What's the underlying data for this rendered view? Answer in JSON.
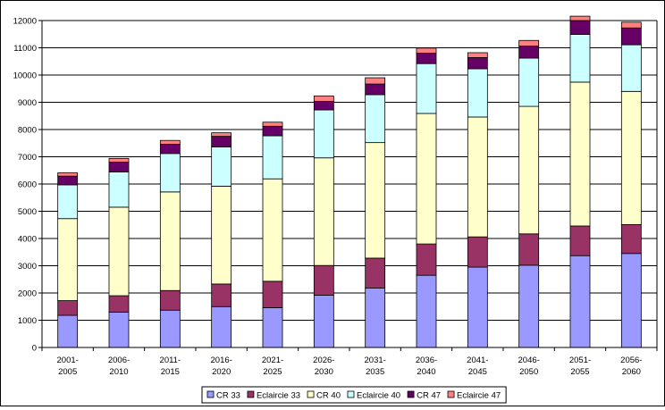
{
  "chart_data": {
    "type": "bar",
    "stacked": true,
    "title": "",
    "xlabel": "",
    "ylabel": "",
    "ylim": [
      0,
      12000
    ],
    "yticks": [
      0,
      1000,
      2000,
      3000,
      4000,
      5000,
      6000,
      7000,
      8000,
      9000,
      10000,
      11000,
      12000
    ],
    "grid": true,
    "legend_position": "bottom",
    "categories": [
      [
        "2001-",
        "2005"
      ],
      [
        "2006-",
        "2010"
      ],
      [
        "2011-",
        "2015"
      ],
      [
        "2016-",
        "2020"
      ],
      [
        "2021-",
        "2025"
      ],
      [
        "2026-",
        "2030"
      ],
      [
        "2031-",
        "2035"
      ],
      [
        "2036-",
        "2040"
      ],
      [
        "2041-",
        "2045"
      ],
      [
        "2046-",
        "2050"
      ],
      [
        "2051-",
        "2055"
      ],
      [
        "2056-",
        "2060"
      ]
    ],
    "series": [
      {
        "name": "CR 33",
        "color": "#9999FF",
        "values": [
          1180,
          1300,
          1370,
          1500,
          1460,
          1920,
          2180,
          2650,
          2950,
          3020,
          3370,
          3450
        ]
      },
      {
        "name": "Eclaircie 33",
        "color": "#993366",
        "values": [
          540,
          600,
          720,
          830,
          970,
          1090,
          1100,
          1150,
          1110,
          1150,
          1090,
          1060
        ]
      },
      {
        "name": "CR 40",
        "color": "#FFFFCC",
        "values": [
          3010,
          3250,
          3620,
          3590,
          3760,
          3950,
          4240,
          4790,
          4400,
          4680,
          5280,
          4890
        ]
      },
      {
        "name": "Eclaircie 40",
        "color": "#CCFFFF",
        "values": [
          1240,
          1290,
          1410,
          1440,
          1580,
          1760,
          1760,
          1830,
          1770,
          1770,
          1750,
          1710
        ]
      },
      {
        "name": "CR 47",
        "color": "#660066",
        "values": [
          320,
          360,
          340,
          390,
          350,
          310,
          390,
          380,
          410,
          440,
          510,
          620
        ]
      },
      {
        "name": "Eclaircie 47",
        "color": "#FF8080",
        "values": [
          120,
          140,
          140,
          130,
          150,
          200,
          230,
          190,
          180,
          210,
          160,
          210
        ]
      }
    ]
  }
}
